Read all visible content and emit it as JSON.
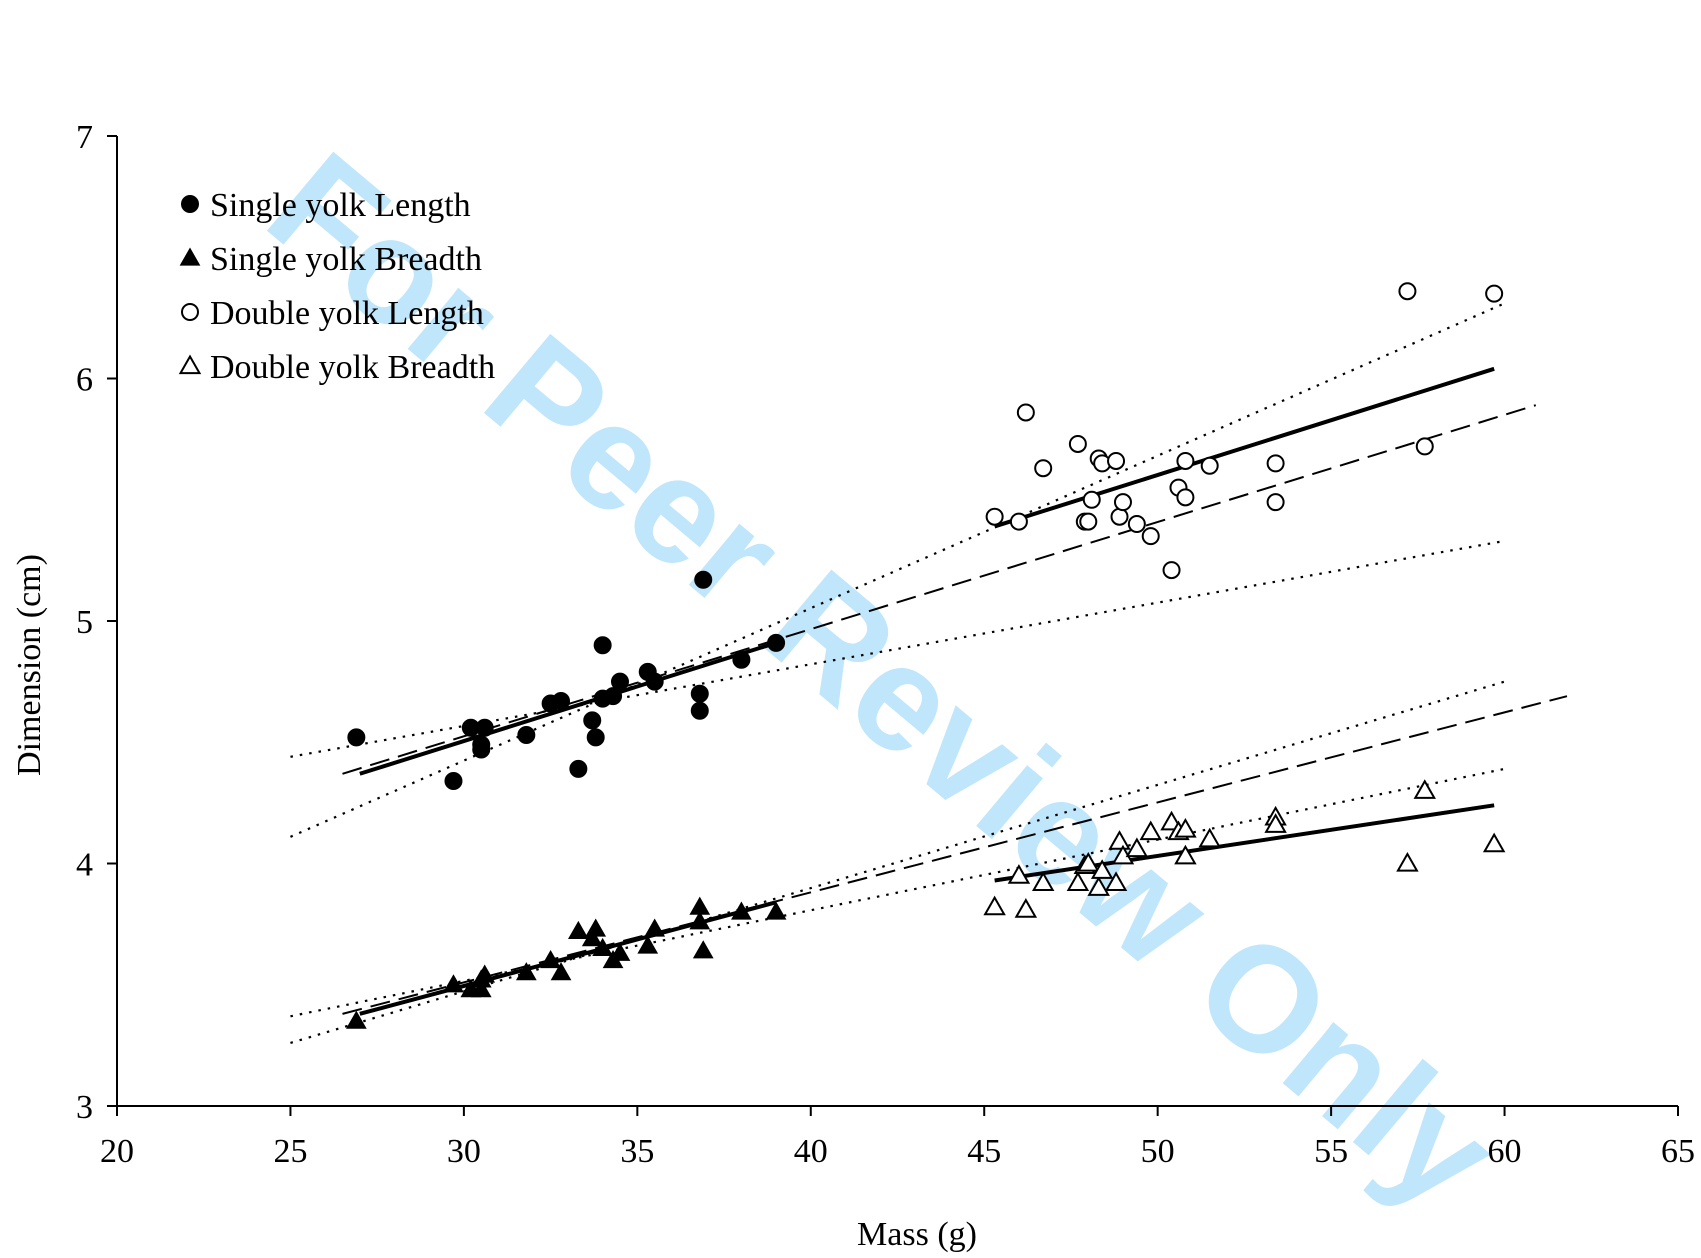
{
  "watermark": {
    "text": "For Peer Review Only",
    "color": "#bfe6fb"
  },
  "chart_data": {
    "type": "scatter",
    "title": "",
    "xlabel": "Mass (g)",
    "ylabel": "Dimension (cm)",
    "xlim": [
      20,
      65
    ],
    "ylim": [
      3,
      7
    ],
    "xticks": [
      20,
      25,
      30,
      35,
      40,
      45,
      50,
      55,
      60,
      65
    ],
    "yticks": [
      3,
      4,
      5,
      6,
      7
    ],
    "grid": false,
    "legend_position": "top-left",
    "series": [
      {
        "name": "Single yolk Length",
        "marker": "filled-circle",
        "points": [
          [
            26.9,
            4.52
          ],
          [
            29.7,
            4.34
          ],
          [
            30.2,
            4.56
          ],
          [
            30.5,
            4.49
          ],
          [
            30.5,
            4.47
          ],
          [
            30.6,
            4.56
          ],
          [
            31.8,
            4.53
          ],
          [
            32.5,
            4.66
          ],
          [
            32.8,
            4.67
          ],
          [
            33.3,
            4.39
          ],
          [
            33.7,
            4.59
          ],
          [
            33.8,
            4.52
          ],
          [
            34.0,
            4.9
          ],
          [
            34.0,
            4.68
          ],
          [
            34.3,
            4.69
          ],
          [
            34.5,
            4.75
          ],
          [
            35.3,
            4.79
          ],
          [
            35.5,
            4.75
          ],
          [
            36.8,
            4.7
          ],
          [
            36.8,
            4.63
          ],
          [
            36.9,
            5.17
          ],
          [
            38.0,
            4.84
          ],
          [
            39.0,
            4.91
          ]
        ]
      },
      {
        "name": "Single yolk Breadth",
        "marker": "filled-triangle",
        "points": [
          [
            26.9,
            3.35
          ],
          [
            29.7,
            3.5
          ],
          [
            30.2,
            3.48
          ],
          [
            30.5,
            3.48
          ],
          [
            30.5,
            3.52
          ],
          [
            30.6,
            3.54
          ],
          [
            31.8,
            3.55
          ],
          [
            32.5,
            3.6
          ],
          [
            32.8,
            3.55
          ],
          [
            33.3,
            3.72
          ],
          [
            33.7,
            3.69
          ],
          [
            33.8,
            3.73
          ],
          [
            34.0,
            3.65
          ],
          [
            34.3,
            3.6
          ],
          [
            34.5,
            3.63
          ],
          [
            35.3,
            3.66
          ],
          [
            35.5,
            3.73
          ],
          [
            36.8,
            3.76
          ],
          [
            36.8,
            3.82
          ],
          [
            36.9,
            3.64
          ],
          [
            38.0,
            3.8
          ],
          [
            39.0,
            3.8
          ]
        ]
      },
      {
        "name": "Double yolk Length",
        "marker": "open-circle",
        "points": [
          [
            45.3,
            5.43
          ],
          [
            46.0,
            5.41
          ],
          [
            46.2,
            5.86
          ],
          [
            46.7,
            5.63
          ],
          [
            47.7,
            5.73
          ],
          [
            47.9,
            5.41
          ],
          [
            48.0,
            5.41
          ],
          [
            48.1,
            5.5
          ],
          [
            48.3,
            5.67
          ],
          [
            48.4,
            5.65
          ],
          [
            48.8,
            5.66
          ],
          [
            48.9,
            5.43
          ],
          [
            49.0,
            5.49
          ],
          [
            49.4,
            5.4
          ],
          [
            49.8,
            5.35
          ],
          [
            50.4,
            5.21
          ],
          [
            50.6,
            5.55
          ],
          [
            50.8,
            5.51
          ],
          [
            50.8,
            5.66
          ],
          [
            51.5,
            5.64
          ],
          [
            53.4,
            5.65
          ],
          [
            53.4,
            5.49
          ],
          [
            57.2,
            6.36
          ],
          [
            57.7,
            5.72
          ],
          [
            59.7,
            6.35
          ]
        ]
      },
      {
        "name": "Double yolk Breadth",
        "marker": "open-triangle",
        "points": [
          [
            45.3,
            3.82
          ],
          [
            46.0,
            3.95
          ],
          [
            46.2,
            3.81
          ],
          [
            46.7,
            3.92
          ],
          [
            47.7,
            3.92
          ],
          [
            47.9,
            3.99
          ],
          [
            48.0,
            4.0
          ],
          [
            48.3,
            3.9
          ],
          [
            48.4,
            3.97
          ],
          [
            48.8,
            3.92
          ],
          [
            48.9,
            4.09
          ],
          [
            49.0,
            4.03
          ],
          [
            49.4,
            4.06
          ],
          [
            49.8,
            4.13
          ],
          [
            50.4,
            4.17
          ],
          [
            50.6,
            4.13
          ],
          [
            50.8,
            4.14
          ],
          [
            50.8,
            4.03
          ],
          [
            51.5,
            4.1
          ],
          [
            53.4,
            4.19
          ],
          [
            53.4,
            4.16
          ],
          [
            57.2,
            4.0
          ],
          [
            57.7,
            4.3
          ],
          [
            59.7,
            4.08
          ]
        ]
      }
    ],
    "lines": [
      {
        "kind": "fit-single-length",
        "style": "solid",
        "x": [
          27.0,
          39.0
        ],
        "y": [
          4.37,
          4.91
        ]
      },
      {
        "kind": "fit-single-breadth",
        "style": "solid",
        "x": [
          27.0,
          39.0
        ],
        "y": [
          3.38,
          3.84
        ]
      },
      {
        "kind": "fit-double-length",
        "style": "solid",
        "x": [
          45.3,
          59.7
        ],
        "y": [
          5.39,
          6.04
        ]
      },
      {
        "kind": "fit-double-breadth",
        "style": "solid",
        "x": [
          45.3,
          59.7
        ],
        "y": [
          3.93,
          4.24
        ]
      },
      {
        "kind": "combined-length",
        "style": "dashed",
        "x": [
          26.5,
          60.9
        ],
        "y": [
          4.37,
          5.89
        ]
      },
      {
        "kind": "combined-breadth",
        "style": "dashed",
        "x": [
          26.5,
          61.8
        ],
        "y": [
          3.38,
          4.69
        ]
      },
      {
        "kind": "bound-length-upper",
        "style": "dotted",
        "x": [
          25.0,
          60.0
        ],
        "y": [
          4.11,
          6.31
        ]
      },
      {
        "kind": "bound-length-lower",
        "style": "dotted",
        "x": [
          25.0,
          60.0
        ],
        "y": [
          4.44,
          5.33
        ]
      },
      {
        "kind": "bound-breadth-upper",
        "style": "dotted",
        "x": [
          25.0,
          60.0
        ],
        "y": [
          3.26,
          4.75
        ]
      },
      {
        "kind": "bound-breadth-lower",
        "style": "dotted",
        "x": [
          25.0,
          60.0
        ],
        "y": [
          3.37,
          4.39
        ]
      }
    ]
  }
}
